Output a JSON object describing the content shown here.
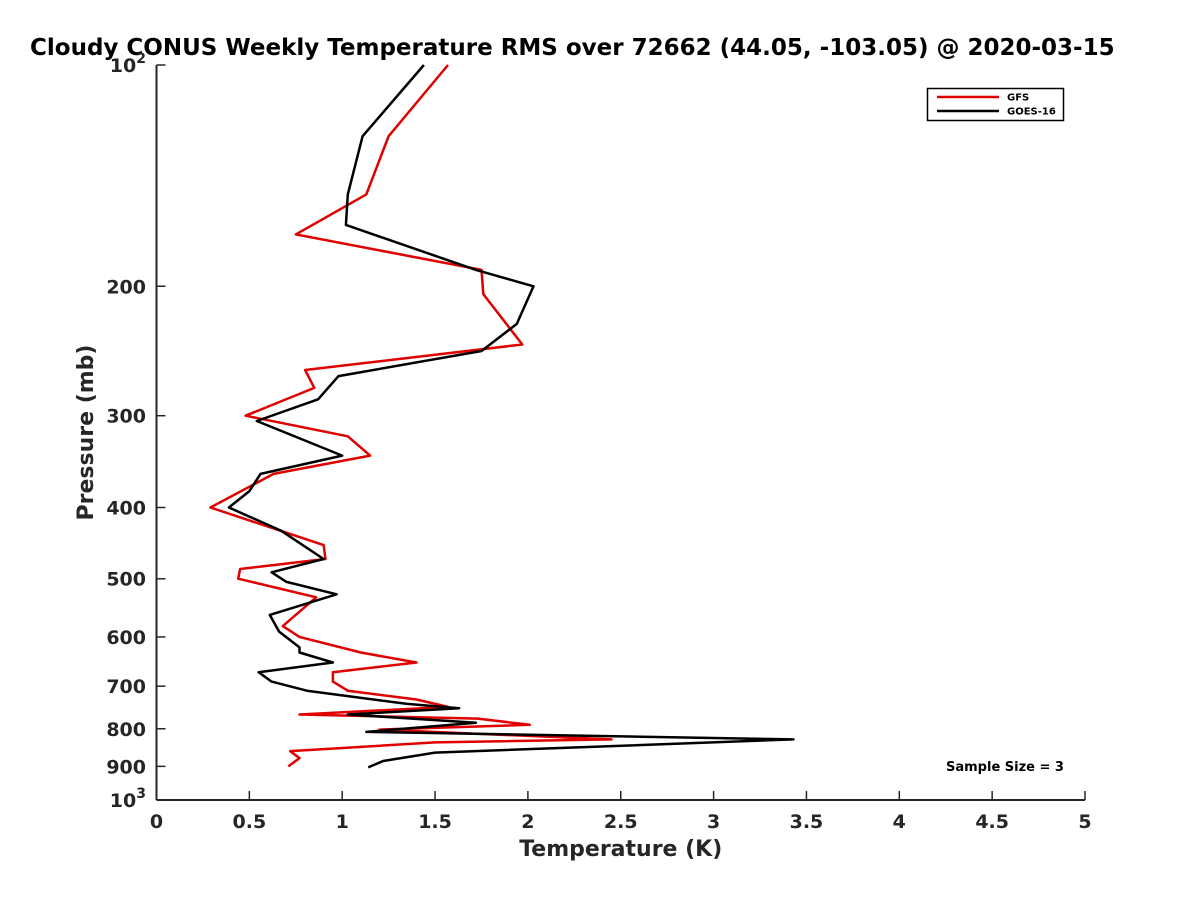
{
  "chart_data": {
    "type": "line",
    "title": "Cloudy CONUS Weekly Temperature RMS over 72662 (44.05, -103.05) @ 2020-03-15",
    "xlabel": "Temperature (K)",
    "ylabel": "Pressure (mb)",
    "xlim": [
      0,
      5
    ],
    "ylim": [
      100,
      1000
    ],
    "y_scale": "log",
    "y_direction": "reversed",
    "grid": false,
    "legend_position": "top-right",
    "x_ticks": [
      "0",
      "0.5",
      "1",
      "1.5",
      "2",
      "2.5",
      "3",
      "3.5",
      "4",
      "4.5",
      "5"
    ],
    "y_ticks": [
      {
        "value": 100,
        "base": "10",
        "exp": "2"
      },
      {
        "value": 200,
        "label": "200"
      },
      {
        "value": 300,
        "label": "300"
      },
      {
        "value": 400,
        "label": "400"
      },
      {
        "value": 500,
        "label": "500"
      },
      {
        "value": 600,
        "label": "600"
      },
      {
        "value": 700,
        "label": "700"
      },
      {
        "value": 800,
        "label": "800"
      },
      {
        "value": 900,
        "label": "900"
      },
      {
        "value": 1000,
        "base": "10",
        "exp": "3"
      }
    ],
    "series": [
      {
        "name": "GFS",
        "color": "#e00000",
        "points": [
          [
            1.57,
            100
          ],
          [
            1.25,
            125
          ],
          [
            1.13,
            150
          ],
          [
            0.75,
            170
          ],
          [
            1.75,
            190
          ],
          [
            1.76,
            205
          ],
          [
            1.97,
            240
          ],
          [
            0.8,
            260
          ],
          [
            0.85,
            275
          ],
          [
            0.48,
            300
          ],
          [
            1.03,
            320
          ],
          [
            1.15,
            340
          ],
          [
            0.63,
            360
          ],
          [
            0.29,
            400
          ],
          [
            0.9,
            450
          ],
          [
            0.91,
            470
          ],
          [
            0.45,
            485
          ],
          [
            0.44,
            500
          ],
          [
            0.86,
            530
          ],
          [
            0.68,
            580
          ],
          [
            0.77,
            600
          ],
          [
            1.1,
            630
          ],
          [
            1.4,
            650
          ],
          [
            0.95,
            670
          ],
          [
            0.95,
            690
          ],
          [
            1.03,
            710
          ],
          [
            1.4,
            730
          ],
          [
            1.57,
            747
          ],
          [
            0.77,
            765
          ],
          [
            1.73,
            775
          ],
          [
            2.01,
            790
          ],
          [
            1.2,
            802
          ],
          [
            2.45,
            827
          ],
          [
            1.5,
            835
          ],
          [
            0.72,
            858
          ],
          [
            0.77,
            877
          ],
          [
            0.71,
            900
          ]
        ]
      },
      {
        "name": "GOES-16",
        "color": "#000000",
        "points": [
          [
            1.44,
            100
          ],
          [
            1.11,
            125
          ],
          [
            1.03,
            150
          ],
          [
            1.02,
            165
          ],
          [
            1.72,
            190
          ],
          [
            2.03,
            200
          ],
          [
            1.94,
            225
          ],
          [
            1.75,
            245
          ],
          [
            0.98,
            265
          ],
          [
            0.87,
            285
          ],
          [
            0.54,
            305
          ],
          [
            1.0,
            340
          ],
          [
            0.56,
            360
          ],
          [
            0.5,
            380
          ],
          [
            0.39,
            400
          ],
          [
            0.67,
            430
          ],
          [
            0.9,
            470
          ],
          [
            0.62,
            490
          ],
          [
            0.7,
            505
          ],
          [
            0.97,
            525
          ],
          [
            0.61,
            560
          ],
          [
            0.66,
            590
          ],
          [
            0.77,
            620
          ],
          [
            0.77,
            630
          ],
          [
            0.95,
            650
          ],
          [
            0.55,
            670
          ],
          [
            0.62,
            690
          ],
          [
            0.81,
            710
          ],
          [
            1.35,
            740
          ],
          [
            1.63,
            750
          ],
          [
            1.03,
            765
          ],
          [
            1.72,
            785
          ],
          [
            1.13,
            808
          ],
          [
            3.43,
            827
          ],
          [
            1.5,
            862
          ],
          [
            1.22,
            885
          ],
          [
            1.14,
            903
          ]
        ]
      }
    ],
    "annotations": [
      {
        "text": "Sample Size = 3",
        "position": "bottom-right"
      }
    ]
  }
}
